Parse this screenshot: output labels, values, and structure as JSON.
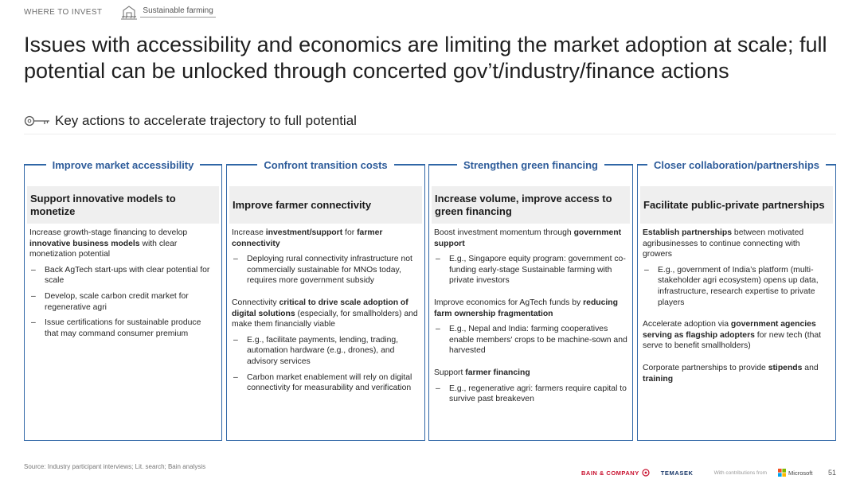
{
  "header": {
    "section": "WHERE TO INVEST",
    "tag": "Sustainable farming"
  },
  "title": "Issues with accessibility and economics are limiting the market adoption at scale; full potential can be unlocked through concerted gov’t/industry/finance actions",
  "subhead": "Key actions to accelerate trajectory to full potential",
  "columns": [
    {
      "title": "Improve market accessibility",
      "headline": "Support innovative models to monetize",
      "p1_a": "Increase growth-stage financing to develop ",
      "p1_b": "innovative business models",
      "p1_c": " with clear monetization potential",
      "b1": "Back AgTech start-ups with clear potential for scale",
      "b2": "Develop, scale carbon credit market for regenerative agri",
      "b3": "Issue certifications for sustainable produce that may command consumer premium"
    },
    {
      "title": "Confront transition costs",
      "headline": "Improve farmer connectivity",
      "p1_a": "Increase ",
      "p1_b": "investment/support",
      "p1_c": " for ",
      "p1_d": "farmer connectivity",
      "b1": "Deploying rural connectivity infrastructure not commercially sustainable for MNOs today, requires more government subsidy",
      "p2_a": "Connectivity ",
      "p2_b": "critical to drive scale adoption of digital solutions",
      "p2_c": " (especially, for smallholders) and make them financially viable",
      "b2": "E.g., facilitate payments, lending, trading, automation hardware (e.g., drones), and advisory services",
      "b3": "Carbon market enablement will rely on digital connectivity for measurability and verification"
    },
    {
      "title": "Strengthen green financing",
      "headline": "Increase volume, improve access to green financing",
      "p1_a": "Boost investment momentum through ",
      "p1_b": "government support",
      "b1": "E.g., Singapore equity program: government co-funding early-stage Sustainable farming with private investors",
      "p2_a": "Improve economics for AgTech funds by ",
      "p2_b": "reducing farm ownership fragmentation",
      "b2": "E.g., Nepal and India: farming cooperatives enable members' crops to be machine-sown and harvested",
      "p3_a": "Support ",
      "p3_b": "farmer financing",
      "b3": "E.g., regenerative agri: farmers require capital to survive past breakeven"
    },
    {
      "title": "Closer collaboration/partnerships",
      "headline": "Facilitate public-private partnerships",
      "p1_a": "Establish partnerships",
      "p1_b": " between motivated agribusinesses to continue connecting with growers",
      "b1": "E.g., government of India’s platform (multi-stakeholder agri ecosystem) opens up data, infrastructure, research expertise to private players",
      "p2_a": "Accelerate adoption via ",
      "p2_b": "government agencies serving as flagship adopters",
      "p2_c": " for new tech (that serve to benefit smallholders)",
      "p3_a": "Corporate partnerships to provide ",
      "p3_b": "stipends",
      "p3_c": " and ",
      "p3_d": "training"
    }
  ],
  "footer": {
    "source": "Source: Industry participant interviews; Lit. search; Bain analysis",
    "bain": "BAIN & COMPANY",
    "temasek": "TEMASEK",
    "contrib": "With contributions from",
    "microsoft": "Microsoft",
    "page": "51"
  },
  "colors": {
    "accent": "#2f66a6",
    "heading": "#2e5c9a",
    "shade": "#efefef"
  }
}
